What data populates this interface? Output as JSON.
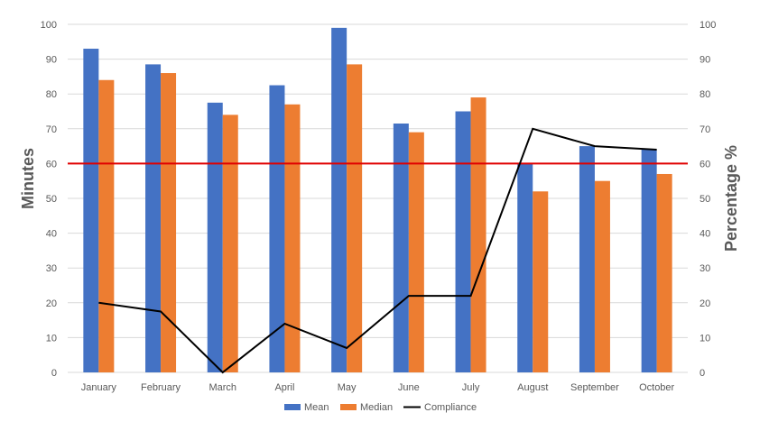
{
  "chart_data": {
    "type": "bar",
    "categories": [
      "January",
      "February",
      "March",
      "April",
      "May",
      "June",
      "July",
      "August",
      "September",
      "October"
    ],
    "series": [
      {
        "name": "Mean",
        "type": "bar",
        "axis": "left",
        "color": "#4472C4",
        "values": [
          93,
          88.5,
          77.5,
          82.5,
          99,
          71.5,
          75,
          60,
          65,
          64
        ]
      },
      {
        "name": "Median",
        "type": "bar",
        "axis": "left",
        "color": "#ED7D31",
        "values": [
          84,
          86,
          74,
          77,
          88.5,
          69,
          79,
          52,
          55,
          57
        ]
      },
      {
        "name": "Compliance",
        "type": "line",
        "axis": "right",
        "color": "#000000",
        "values": [
          20,
          17.5,
          0,
          14,
          7,
          22,
          22,
          70,
          65,
          64
        ]
      }
    ],
    "reference_line": {
      "value": 60,
      "axis": "left",
      "color": "#E00000"
    },
    "ylabel": "Minutes",
    "y2label": "Percentage %",
    "ylim": [
      0,
      100
    ],
    "y2lim": [
      0,
      100
    ],
    "yticks": [
      "0",
      "10",
      "20",
      "30",
      "40",
      "50",
      "60",
      "70",
      "80",
      "90",
      "100"
    ],
    "y2ticks": [
      "0",
      "10",
      "20",
      "30",
      "40",
      "50",
      "60",
      "70",
      "80",
      "90",
      "100"
    ],
    "grid": true,
    "legend_position": "bottom"
  }
}
